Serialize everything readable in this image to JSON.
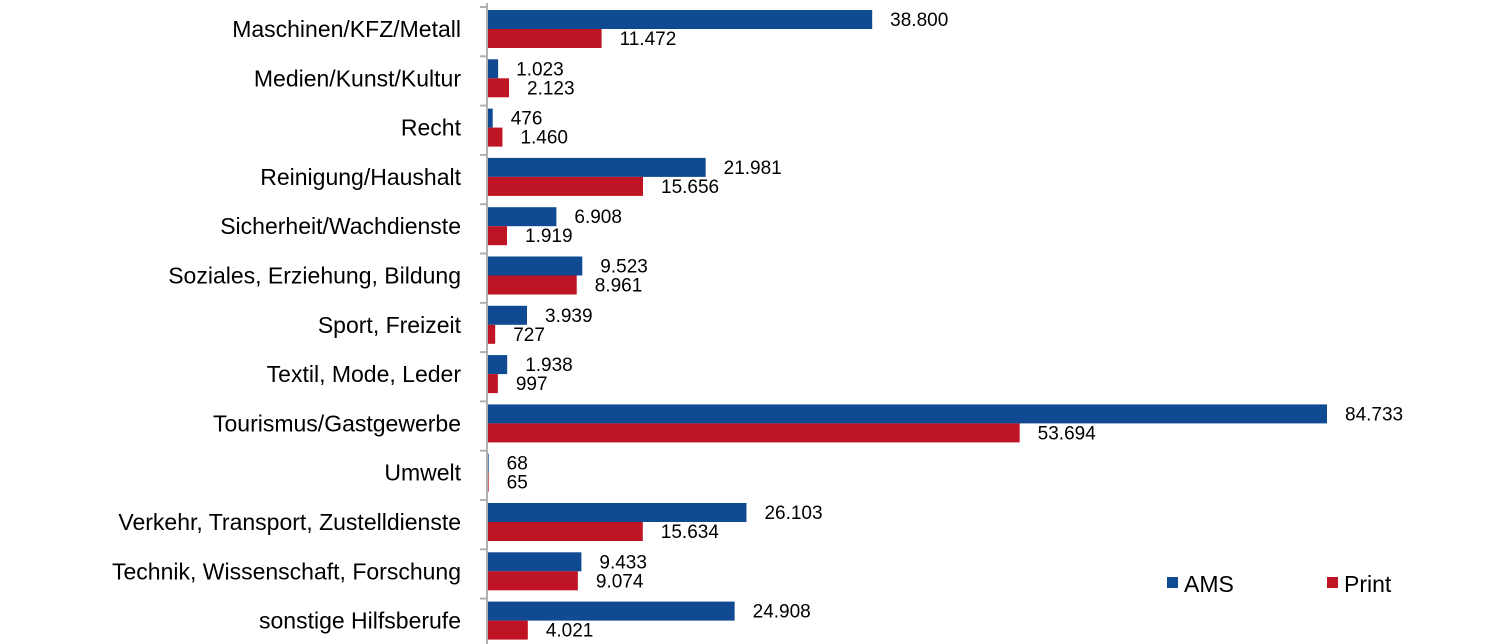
{
  "chart_data": {
    "type": "bar",
    "orientation": "horizontal",
    "title": "",
    "xlabel": "",
    "ylabel": "",
    "xlim": [
      0,
      84733
    ],
    "grid": false,
    "legend_position": "bottom-right",
    "colors": {
      "AMS": "#0f4a92",
      "Print": "#be1424"
    },
    "categories": [
      "Maschinen/KFZ/Metall",
      "Medien/Kunst/Kultur",
      "Recht",
      "Reinigung/Haushalt",
      "Sicherheit/Wachdienste",
      "Soziales, Erziehung, Bildung",
      "Sport, Freizeit",
      "Textil, Mode, Leder",
      "Tourismus/Gastgewerbe",
      "Umwelt",
      "Verkehr, Transport, Zustelldienste",
      "Technik, Wissenschaft, Forschung",
      "sonstige Hilfsberufe"
    ],
    "series": [
      {
        "name": "AMS",
        "values": [
          38800,
          1023,
          476,
          21981,
          6908,
          9523,
          3939,
          1938,
          84733,
          68,
          26103,
          9433,
          24908
        ],
        "labels": [
          "38.800",
          "1.023",
          "476",
          "21.981",
          "6.908",
          "9.523",
          "3.939",
          "1.938",
          "84.733",
          "68",
          "26.103",
          "9.433",
          "24.908"
        ]
      },
      {
        "name": "Print",
        "values": [
          11472,
          2123,
          1460,
          15656,
          1919,
          8961,
          727,
          997,
          53694,
          65,
          15634,
          9074,
          4021
        ],
        "labels": [
          "11.472",
          "2.123",
          "1.460",
          "15.656",
          "1.919",
          "8.961",
          "727",
          "997",
          "53.694",
          "65",
          "15.634",
          "9.074",
          "4.021"
        ]
      }
    ]
  }
}
